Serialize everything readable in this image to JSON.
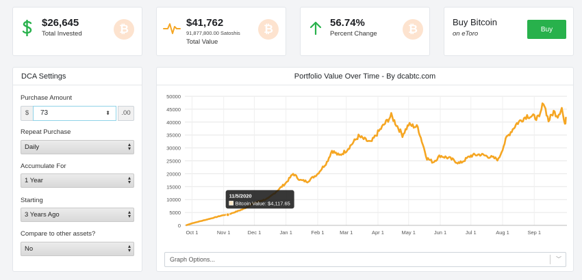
{
  "stats": {
    "invested": {
      "value": "$26,645",
      "label": "Total Invested"
    },
    "total_value": {
      "value": "$41,762",
      "sub": "91,877,800.00 Satoshis",
      "label": "Total Value"
    },
    "percent": {
      "value": "56.74%",
      "label": "Percent Change"
    },
    "buy": {
      "title": "Buy Bitcoin",
      "subtitle": "on eToro",
      "button": "Buy"
    }
  },
  "colors": {
    "accent_green": "#28b14c",
    "chart_line": "#f5a623",
    "btc_badge": "#fde3cf"
  },
  "icons": {
    "dollar": "dollar-icon",
    "pulse": "pulse-icon",
    "up": "arrow-up-icon",
    "btc": "bitcoin-icon"
  },
  "btc_symbol": "₿",
  "dca": {
    "title": "DCA Settings",
    "purchase_amount_label": "Purchase Amount",
    "currency_prefix": "$",
    "amount": "73",
    "cents_suffix": ".00",
    "repeat_label": "Repeat Purchase",
    "repeat_value": "Daily",
    "accumulate_label": "Accumulate For",
    "accumulate_value": "1 Year",
    "starting_label": "Starting",
    "starting_value": "3 Years Ago",
    "compare_label": "Compare to other assets?",
    "compare_value": "No"
  },
  "graph_options_placeholder": "Graph Options...",
  "chart_data": {
    "type": "line",
    "title": "Portfolio Value Over Time - By dcabtc.com",
    "x_ticks": [
      "Oct 1",
      "Nov 1",
      "Dec 1",
      "Jan 1",
      "Feb 1",
      "Mar 1",
      "Apr 1",
      "May 1",
      "Jun 1",
      "Jul 1",
      "Aug 1",
      "Sep 1"
    ],
    "y_ticks": [
      0,
      5000,
      10000,
      15000,
      20000,
      25000,
      30000,
      35000,
      40000,
      45000,
      50000
    ],
    "ylim": [
      0,
      50000
    ],
    "grid": true,
    "series": [
      {
        "x": [
          "2020-09-25",
          "2020-10-01",
          "2020-10-15",
          "2020-11-01",
          "2020-11-05",
          "2020-11-20",
          "2020-12-01",
          "2020-12-15",
          "2020-12-25",
          "2021-01-01",
          "2021-01-08",
          "2021-01-15",
          "2021-01-22",
          "2021-02-01",
          "2021-02-10",
          "2021-02-15",
          "2021-02-22",
          "2021-03-01",
          "2021-03-13",
          "2021-03-25",
          "2021-04-01",
          "2021-04-14",
          "2021-04-25",
          "2021-05-01",
          "2021-05-10",
          "2021-05-19",
          "2021-05-25",
          "2021-06-01",
          "2021-06-10",
          "2021-06-20",
          "2021-07-01",
          "2021-07-10",
          "2021-07-20",
          "2021-07-28",
          "2021-08-05",
          "2021-08-15",
          "2021-08-25",
          "2021-09-01",
          "2021-09-06",
          "2021-09-10",
          "2021-09-15",
          "2021-09-20",
          "2021-09-24",
          "2021-09-28",
          "2021-10-01",
          "2021-10-02"
        ],
        "y": [
          0,
          800,
          2200,
          4000,
          4117.65,
          6300,
          8700,
          10500,
          14000,
          16500,
          20000,
          17500,
          17000,
          20000,
          24500,
          29000,
          27000,
          29000,
          34500,
          32000,
          36000,
          42500,
          35000,
          39000,
          38000,
          26000,
          24500,
          27000,
          26000,
          24000,
          27000,
          27500,
          26500,
          25500,
          34000,
          39500,
          42500,
          42000,
          41500,
          48000,
          40500,
          44000,
          42500,
          45500,
          38500,
          42000
        ]
      }
    ],
    "tooltip": {
      "date": "11/5/2020",
      "label": "Bitcoin Value: $4,117.65"
    }
  }
}
